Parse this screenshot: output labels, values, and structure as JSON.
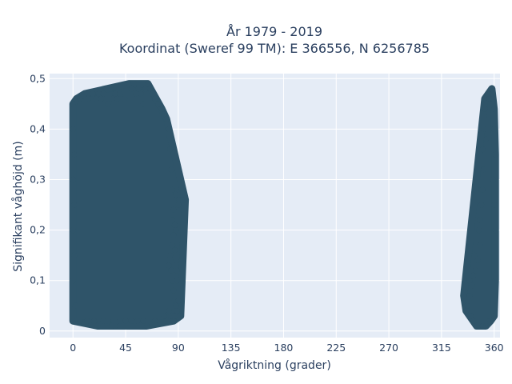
{
  "chart_data": {
    "type": "scatter",
    "title": "År 1979 - 2019",
    "subtitle": "Koordinat (Sweref 99 TM): E 366556, N 6256785",
    "xlabel": "Vågriktning (grader)",
    "ylabel": "Signifikant våghöjd (m)",
    "xlim": [
      -20,
      365
    ],
    "ylim": [
      -0.013,
      0.51
    ],
    "x_ticks": [
      0,
      45,
      90,
      135,
      180,
      225,
      270,
      315,
      360
    ],
    "x_tick_labels": [
      "0",
      "45",
      "90",
      "135",
      "180",
      "225",
      "270",
      "315",
      "360"
    ],
    "y_ticks": [
      0,
      0.1,
      0.2,
      0.3,
      0.4,
      0.5
    ],
    "y_tick_labels": [
      "0",
      "0,1",
      "0,2",
      "0,3",
      "0,4",
      "0,5"
    ],
    "grid": true,
    "colors": {
      "marker": "#2f5469",
      "plot_bg": "#e5ecf6",
      "grid": "#ffffff",
      "text": "#2a3f5f"
    },
    "series": [
      {
        "points": [
          [
            0,
            0.02
          ],
          [
            0,
            0.1
          ],
          [
            0,
            0.2
          ],
          [
            0,
            0.3
          ],
          [
            0,
            0.4
          ],
          [
            0,
            0.45
          ],
          [
            3,
            0.46
          ],
          [
            6,
            0.46
          ],
          [
            10,
            0.47
          ],
          [
            13,
            0.46
          ],
          [
            17,
            0.47
          ],
          [
            20,
            0.46
          ],
          [
            22,
            0.47
          ],
          [
            24,
            0.46
          ],
          [
            26,
            0.47
          ],
          [
            30,
            0.45
          ],
          [
            34,
            0.46
          ],
          [
            36,
            0.47
          ],
          [
            38,
            0.46
          ],
          [
            40,
            0.47
          ],
          [
            44,
            0.46
          ],
          [
            48,
            0.49
          ],
          [
            50,
            0.48
          ],
          [
            52,
            0.49
          ],
          [
            54,
            0.47
          ],
          [
            56,
            0.48
          ],
          [
            58,
            0.47
          ],
          [
            60,
            0.45
          ],
          [
            62,
            0.48
          ],
          [
            64,
            0.49
          ],
          [
            66,
            0.48
          ],
          [
            68,
            0.47
          ],
          [
            70,
            0.46
          ],
          [
            73,
            0.45
          ],
          [
            76,
            0.44
          ],
          [
            78,
            0.43
          ],
          [
            80,
            0.42
          ],
          [
            82,
            0.4
          ],
          [
            83,
            0.36
          ],
          [
            84,
            0.32
          ],
          [
            85,
            0.28
          ],
          [
            88,
            0.27
          ],
          [
            91,
            0.26
          ],
          [
            94,
            0.26
          ],
          [
            96,
            0.26
          ],
          [
            90,
            0.25
          ],
          [
            86,
            0.24
          ],
          [
            85,
            0.22
          ],
          [
            87,
            0.21
          ],
          [
            88,
            0.2
          ],
          [
            86,
            0.19
          ],
          [
            85,
            0.17
          ],
          [
            83,
            0.15
          ],
          [
            82,
            0.13
          ],
          [
            84,
            0.12
          ],
          [
            85,
            0.1
          ],
          [
            86,
            0.08
          ],
          [
            87,
            0.06
          ],
          [
            88,
            0.05
          ],
          [
            89,
            0.04
          ],
          [
            91,
            0.03
          ],
          [
            92,
            0.03
          ],
          [
            86,
            0.02
          ],
          [
            80,
            0.02
          ],
          [
            70,
            0.02
          ],
          [
            63,
            0.01
          ],
          [
            60,
            0.02
          ],
          [
            55,
            0.02
          ],
          [
            50,
            0.02
          ],
          [
            45,
            0.02
          ],
          [
            40,
            0.02
          ],
          [
            36,
            0.01
          ],
          [
            33,
            0.01
          ],
          [
            30,
            0.02
          ],
          [
            26,
            0.02
          ],
          [
            21,
            0.01
          ],
          [
            18,
            0.02
          ],
          [
            12,
            0.02
          ],
          [
            6,
            0.02
          ],
          [
            2,
            0.05
          ],
          [
            1,
            0.15
          ],
          [
            1,
            0.25
          ],
          [
            1,
            0.35
          ],
          [
            78,
            0.03
          ],
          [
            82,
            0.04
          ],
          [
            84,
            0.03
          ],
          [
            89,
            0.1
          ],
          [
            87,
            0.16
          ],
          [
            88,
            0.14
          ],
          [
            89,
            0.12
          ],
          [
            90,
            0.06
          ],
          [
            87,
            0.03
          ]
        ]
      },
      {
        "points": [
          [
            358,
            0.48
          ],
          [
            355,
            0.47
          ],
          [
            352,
            0.46
          ],
          [
            356,
            0.46
          ],
          [
            359,
            0.46
          ],
          [
            360,
            0.44
          ],
          [
            352,
            0.44
          ],
          [
            351,
            0.4
          ],
          [
            350,
            0.36
          ],
          [
            353,
            0.38
          ],
          [
            360,
            0.4
          ],
          [
            361,
            0.35
          ],
          [
            359,
            0.3
          ],
          [
            351,
            0.32
          ],
          [
            350,
            0.28
          ],
          [
            349,
            0.25
          ],
          [
            348,
            0.22
          ],
          [
            347,
            0.2
          ],
          [
            348,
            0.17
          ],
          [
            346,
            0.14
          ],
          [
            344,
            0.12
          ],
          [
            342,
            0.11
          ],
          [
            341,
            0.09
          ],
          [
            339,
            0.07
          ],
          [
            338,
            0.06
          ],
          [
            337,
            0.05
          ],
          [
            336,
            0.04
          ],
          [
            334,
            0.07
          ],
          [
            340,
            0.03
          ],
          [
            342,
            0.02
          ],
          [
            345,
            0.01
          ],
          [
            350,
            0.01
          ],
          [
            353,
            0.01
          ],
          [
            357,
            0.02
          ],
          [
            360,
            0.03
          ],
          [
            361,
            0.1
          ],
          [
            361,
            0.2
          ],
          [
            360,
            0.25
          ],
          [
            339,
            0.1
          ],
          [
            343,
            0.15
          ]
        ]
      }
    ]
  }
}
